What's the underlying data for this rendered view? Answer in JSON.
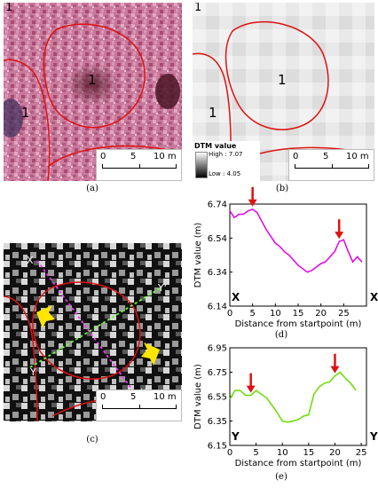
{
  "panels": {
    "a": {
      "caption": "(a)",
      "labels": [
        "1",
        "1",
        "1"
      ],
      "scale_ticks": [
        "0",
        "5",
        "10 m"
      ]
    },
    "b": {
      "caption": "(b)",
      "labels": [
        "1",
        "1",
        "1"
      ],
      "legend_title": "DTM value",
      "legend_high": "High : 7.07",
      "legend_low": "Low : 4.05",
      "scale_ticks": [
        "0",
        "5",
        "10 m"
      ]
    },
    "c": {
      "caption": "(c)",
      "point_labels": [
        "X",
        "X'",
        "Y",
        "Y'"
      ],
      "scale_ticks": [
        "0",
        "5",
        "10 m"
      ]
    },
    "d": {
      "caption": "(d)",
      "start_label": "X",
      "end_label": "X’"
    },
    "e": {
      "caption": "(e)",
      "start_label": "Y",
      "end_label": "Y’"
    }
  },
  "chart_data": [
    {
      "type": "line",
      "panel": "d",
      "xlabel": "Distance from startpoint (m)",
      "ylabel": "DTM value (m)",
      "xlim": [
        0,
        30
      ],
      "ylim": [
        6.14,
        6.74
      ],
      "xticks": [
        "0",
        "5",
        "10",
        "15",
        "20",
        "25"
      ],
      "xtick_values": [
        0,
        5,
        10,
        15,
        20,
        25
      ],
      "yticks": [
        "6.74",
        "6.54",
        "6.34",
        "6.14"
      ],
      "ytick_values": [
        6.74,
        6.54,
        6.34,
        6.14
      ],
      "color": "#e600e6",
      "arrow_x": [
        5,
        24
      ],
      "x": [
        0,
        1,
        2,
        3,
        4,
        5,
        6,
        7,
        8,
        9,
        10,
        11,
        12,
        13,
        14,
        15,
        16,
        17,
        18,
        19,
        20,
        21,
        22,
        23,
        24,
        25,
        26,
        27,
        28,
        29
      ],
      "y": [
        6.7,
        6.66,
        6.68,
        6.68,
        6.7,
        6.71,
        6.69,
        6.64,
        6.59,
        6.55,
        6.51,
        6.49,
        6.46,
        6.44,
        6.41,
        6.38,
        6.36,
        6.34,
        6.35,
        6.37,
        6.39,
        6.4,
        6.43,
        6.46,
        6.52,
        6.53,
        6.46,
        6.4,
        6.43,
        6.4
      ]
    },
    {
      "type": "line",
      "panel": "e",
      "xlabel": "Distance from startpoint (m)",
      "ylabel": "DTM value (m)",
      "xlim": [
        0,
        26
      ],
      "ylim": [
        6.15,
        6.95
      ],
      "xticks": [
        "0",
        "5",
        "10",
        "15",
        "20",
        "25"
      ],
      "xtick_values": [
        0,
        5,
        10,
        15,
        20,
        25
      ],
      "yticks": [
        "6.95",
        "6.75",
        "6.55",
        "6.35",
        "6.15"
      ],
      "ytick_values": [
        6.95,
        6.75,
        6.55,
        6.35,
        6.15
      ],
      "color": "#66dd00",
      "arrow_x": [
        4,
        20
      ],
      "x": [
        0,
        1,
        2,
        3,
        4,
        5,
        6,
        7,
        8,
        9,
        10,
        11,
        12,
        13,
        14,
        15,
        16,
        17,
        18,
        19,
        20,
        21,
        22,
        23,
        24
      ],
      "y": [
        6.53,
        6.6,
        6.6,
        6.56,
        6.56,
        6.6,
        6.57,
        6.54,
        6.48,
        6.42,
        6.35,
        6.34,
        6.35,
        6.36,
        6.39,
        6.4,
        6.57,
        6.63,
        6.66,
        6.67,
        6.72,
        6.75,
        6.7,
        6.66,
        6.6
      ]
    }
  ]
}
